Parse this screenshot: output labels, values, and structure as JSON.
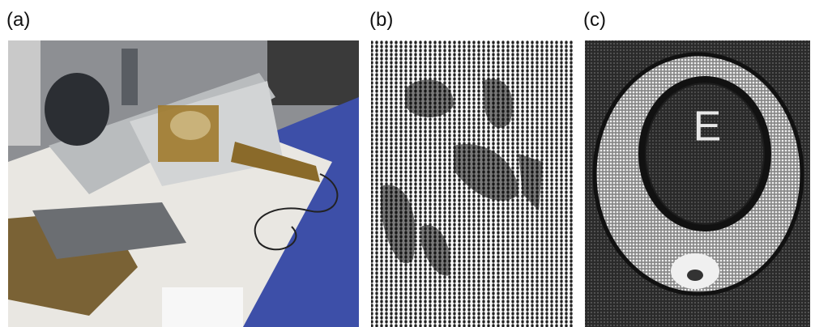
{
  "panels": [
    {
      "label": "(a)"
    },
    {
      "label": "(b)"
    },
    {
      "label": "(c)",
      "image_text": "E"
    }
  ]
}
